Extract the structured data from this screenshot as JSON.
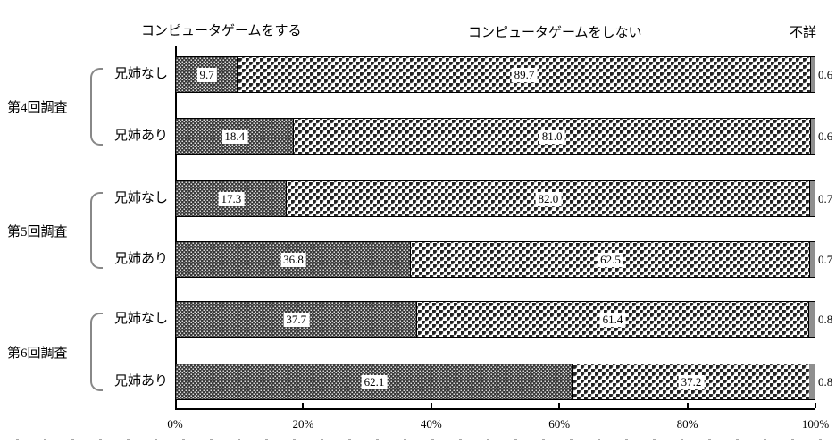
{
  "header": {
    "legend_play": "コンピュータゲームをする",
    "legend_no_play": "コンピュータゲームをしない",
    "legend_unknown": "不詳"
  },
  "chart_data": {
    "type": "bar",
    "orientation": "horizontal",
    "stacked": true,
    "series_names": [
      "コンピュータゲームをする",
      "コンピュータゲームをしない",
      "不詳"
    ],
    "groups": [
      {
        "label": "第4回調査",
        "rows": [
          {
            "label": "兄姉なし",
            "play": 9.7,
            "no_play": 89.7,
            "unknown": 0.6
          },
          {
            "label": "兄姉あり",
            "play": 18.4,
            "no_play": 81.0,
            "unknown": 0.6
          }
        ]
      },
      {
        "label": "第5回調査",
        "rows": [
          {
            "label": "兄姉なし",
            "play": 17.3,
            "no_play": 82.0,
            "unknown": 0.7
          },
          {
            "label": "兄姉あり",
            "play": 36.8,
            "no_play": 62.5,
            "unknown": 0.7
          }
        ]
      },
      {
        "label": "第6回調査",
        "rows": [
          {
            "label": "兄姉なし",
            "play": 37.7,
            "no_play": 61.4,
            "unknown": 0.8
          },
          {
            "label": "兄姉あり",
            "play": 62.1,
            "no_play": 37.2,
            "unknown": 0.8
          }
        ]
      }
    ],
    "x_ticks": [
      "0%",
      "20%",
      "40%",
      "60%",
      "80%",
      "100%"
    ],
    "xlim": [
      0,
      100
    ],
    "grid": false,
    "legend_position": "top"
  },
  "colors": {
    "segment_play_pattern": "#3a3a3a",
    "segment_noplay_pattern": "#222222",
    "segment_unknown": "#8f8f8f",
    "axis": "#000000",
    "bracket": "#888888",
    "background": "#ffffff"
  }
}
